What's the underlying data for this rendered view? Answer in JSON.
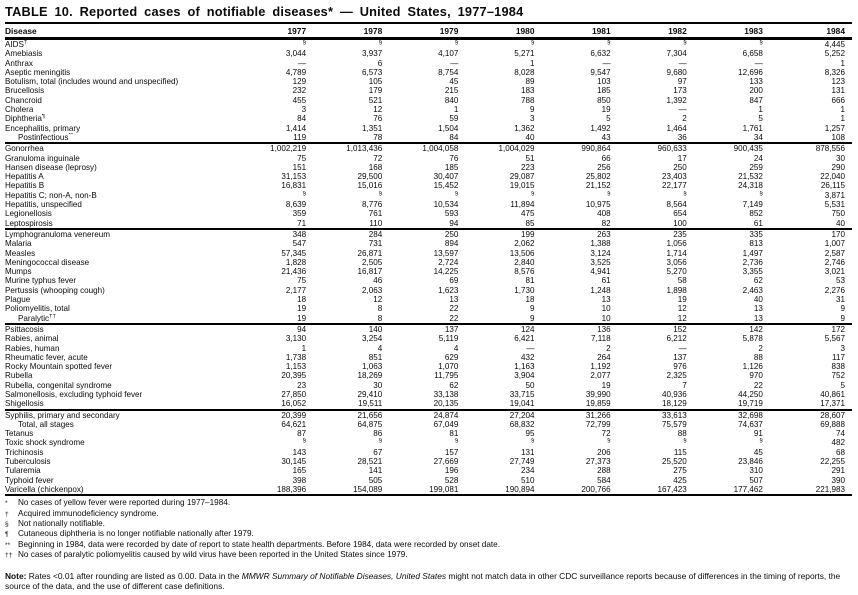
{
  "page": {
    "title": "TABLE 10. Reported cases of notifiable diseases* — United States, 1977–1984"
  },
  "table": {
    "columns": [
      "Disease",
      "1977",
      "1978",
      "1979",
      "1980",
      "1981",
      "1982",
      "1983",
      "1984"
    ],
    "groups": [
      {
        "rows": [
          {
            "label": "AIDS",
            "sup": "†",
            "indent": false,
            "values": [
              "§",
              "§",
              "§",
              "§",
              "§",
              "§",
              "§",
              "4,445"
            ]
          },
          {
            "label": "Amebiasis",
            "sup": "",
            "indent": false,
            "values": [
              "3,044",
              "3,937",
              "4,107",
              "5,271",
              "6,632",
              "7,304",
              "6,658",
              "5,252"
            ]
          },
          {
            "label": "Anthrax",
            "sup": "",
            "indent": false,
            "values": [
              "—",
              "6",
              "—",
              "1",
              "—",
              "—",
              "—",
              "1"
            ]
          },
          {
            "label": "Aseptic meningitis",
            "sup": "",
            "indent": false,
            "values": [
              "4,789",
              "6,573",
              "8,754",
              "8,028",
              "9,547",
              "9,680",
              "12,696",
              "8,326"
            ]
          },
          {
            "label": "Botulism, total (includes wound and unspecified)",
            "sup": "",
            "indent": false,
            "values": [
              "129",
              "105",
              "45",
              "89",
              "103",
              "97",
              "133",
              "123"
            ]
          },
          {
            "label": "Brucellosis",
            "sup": "",
            "indent": false,
            "values": [
              "232",
              "179",
              "215",
              "183",
              "185",
              "173",
              "200",
              "131"
            ]
          },
          {
            "label": "Chancroid",
            "sup": "",
            "indent": false,
            "values": [
              "455",
              "521",
              "840",
              "788",
              "850",
              "1,392",
              "847",
              "666"
            ]
          },
          {
            "label": "Cholera",
            "sup": "",
            "indent": false,
            "values": [
              "3",
              "12",
              "1",
              "9",
              "19",
              "—",
              "1",
              "1"
            ]
          },
          {
            "label": "Diphtheria",
            "sup": "¶",
            "indent": false,
            "values": [
              "84",
              "76",
              "59",
              "3",
              "5",
              "2",
              "5",
              "1"
            ]
          },
          {
            "label": "Encephalitis, primary",
            "sup": "",
            "indent": false,
            "values": [
              "1,414",
              "1,351",
              "1,504",
              "1,362",
              "1,492",
              "1,464",
              "1,761",
              "1,257"
            ]
          },
          {
            "label": "Postinfectious",
            "sup": "**",
            "indent": true,
            "values": [
              "119",
              "78",
              "84",
              "40",
              "43",
              "36",
              "34",
              "108"
            ]
          }
        ]
      },
      {
        "rows": [
          {
            "label": "Gonorrhea",
            "sup": "",
            "indent": false,
            "values": [
              "1,002,219",
              "1,013,436",
              "1,004,058",
              "1,004,029",
              "990,864",
              "960,633",
              "900,435",
              "878,556"
            ]
          },
          {
            "label": "Granuloma inguinale",
            "sup": "",
            "indent": false,
            "values": [
              "75",
              "72",
              "76",
              "51",
              "66",
              "17",
              "24",
              "30"
            ]
          },
          {
            "label": "Hansen disease (leprosy)",
            "sup": "",
            "indent": false,
            "values": [
              "151",
              "168",
              "185",
              "223",
              "256",
              "250",
              "259",
              "290"
            ]
          },
          {
            "label": "Hepatitis A",
            "sup": "",
            "indent": false,
            "values": [
              "31,153",
              "29,500",
              "30,407",
              "29,087",
              "25,802",
              "23,403",
              "21,532",
              "22,040"
            ]
          },
          {
            "label": "Hepatitis B",
            "sup": "",
            "indent": false,
            "values": [
              "16,831",
              "15,016",
              "15,452",
              "19,015",
              "21,152",
              "22,177",
              "24,318",
              "26,115"
            ]
          },
          {
            "label": "Hepatitis C; non-A, non-B",
            "sup": "",
            "indent": false,
            "values": [
              "§",
              "§",
              "§",
              "§",
              "§",
              "§",
              "§",
              "3,871"
            ]
          },
          {
            "label": "Hepatitis, unspecified",
            "sup": "",
            "indent": false,
            "values": [
              "8,639",
              "8,776",
              "10,534",
              "11,894",
              "10,975",
              "8,564",
              "7,149",
              "5,531"
            ]
          },
          {
            "label": "Legionellosis",
            "sup": "",
            "indent": false,
            "values": [
              "359",
              "761",
              "593",
              "475",
              "408",
              "654",
              "852",
              "750"
            ]
          },
          {
            "label": "Leptospirosis",
            "sup": "",
            "indent": false,
            "values": [
              "71",
              "110",
              "94",
              "85",
              "82",
              "100",
              "61",
              "40"
            ]
          }
        ]
      },
      {
        "rows": [
          {
            "label": "Lymphogranuloma venereum",
            "sup": "",
            "indent": false,
            "values": [
              "348",
              "284",
              "250",
              "199",
              "263",
              "235",
              "335",
              "170"
            ]
          },
          {
            "label": "Malaria",
            "sup": "",
            "indent": false,
            "values": [
              "547",
              "731",
              "894",
              "2,062",
              "1,388",
              "1,056",
              "813",
              "1,007"
            ]
          },
          {
            "label": "Measles",
            "sup": "",
            "indent": false,
            "values": [
              "57,345",
              "26,871",
              "13,597",
              "13,506",
              "3,124",
              "1,714",
              "1,497",
              "2,587"
            ]
          },
          {
            "label": "Meningococcal disease",
            "sup": "",
            "indent": false,
            "values": [
              "1,828",
              "2,505",
              "2,724",
              "2,840",
              "3,525",
              "3,056",
              "2,736",
              "2,746"
            ]
          },
          {
            "label": "Mumps",
            "sup": "",
            "indent": false,
            "values": [
              "21,436",
              "16,817",
              "14,225",
              "8,576",
              "4,941",
              "5,270",
              "3,355",
              "3,021"
            ]
          },
          {
            "label": "Murine typhus fever",
            "sup": "",
            "indent": false,
            "values": [
              "75",
              "46",
              "69",
              "81",
              "61",
              "58",
              "62",
              "53"
            ]
          },
          {
            "label": "Pertussis (whooping cough)",
            "sup": "",
            "indent": false,
            "values": [
              "2,177",
              "2,063",
              "1,623",
              "1,730",
              "1,248",
              "1,898",
              "2,463",
              "2,276"
            ]
          },
          {
            "label": "Plague",
            "sup": "",
            "indent": false,
            "values": [
              "18",
              "12",
              "13",
              "18",
              "13",
              "19",
              "40",
              "31"
            ]
          },
          {
            "label": "Poliomyelitis, total",
            "sup": "",
            "indent": false,
            "values": [
              "19",
              "8",
              "22",
              "9",
              "10",
              "12",
              "13",
              "9"
            ]
          },
          {
            "label": "Paralytic",
            "sup": "††",
            "indent": true,
            "values": [
              "19",
              "8",
              "22",
              "9",
              "10",
              "12",
              "13",
              "9"
            ]
          }
        ]
      },
      {
        "rows": [
          {
            "label": "Psittacosis",
            "sup": "",
            "indent": false,
            "values": [
              "94",
              "140",
              "137",
              "124",
              "136",
              "152",
              "142",
              "172"
            ]
          },
          {
            "label": "Rabies, animal",
            "sup": "",
            "indent": false,
            "values": [
              "3,130",
              "3,254",
              "5,119",
              "6,421",
              "7,118",
              "6,212",
              "5,878",
              "5,567"
            ]
          },
          {
            "label": "Rabies, human",
            "sup": "",
            "indent": false,
            "values": [
              "1",
              "4",
              "4",
              "—",
              "2",
              "—",
              "2",
              "3"
            ]
          },
          {
            "label": "Rheumatic fever, acute",
            "sup": "",
            "indent": false,
            "values": [
              "1,738",
              "851",
              "629",
              "432",
              "264",
              "137",
              "88",
              "117"
            ]
          },
          {
            "label": "Rocky Mountain spotted fever",
            "sup": "",
            "indent": false,
            "values": [
              "1,153",
              "1,063",
              "1,070",
              "1,163",
              "1,192",
              "976",
              "1,126",
              "838"
            ]
          },
          {
            "label": "Rubella",
            "sup": "",
            "indent": false,
            "values": [
              "20,395",
              "18,269",
              "11,795",
              "3,904",
              "2,077",
              "2,325",
              "970",
              "752"
            ]
          },
          {
            "label": "Rubella, congenital syndrome",
            "sup": "",
            "indent": false,
            "values": [
              "23",
              "30",
              "62",
              "50",
              "19",
              "7",
              "22",
              "5"
            ]
          },
          {
            "label": "Salmonellosis, excluding typhoid fever",
            "sup": "",
            "indent": false,
            "values": [
              "27,850",
              "29,410",
              "33,138",
              "33,715",
              "39,990",
              "40,936",
              "44,250",
              "40,861"
            ]
          },
          {
            "label": "Shigellosis",
            "sup": "",
            "indent": false,
            "values": [
              "16,052",
              "19,511",
              "20,135",
              "19,041",
              "19,859",
              "18,129",
              "19,719",
              "17,371"
            ]
          }
        ]
      },
      {
        "rows": [
          {
            "label": "Syphilis, primary and secondary",
            "sup": "",
            "indent": false,
            "values": [
              "20,399",
              "21,656",
              "24,874",
              "27,204",
              "31,266",
              "33,613",
              "32,698",
              "28,607"
            ]
          },
          {
            "label": "Total, all stages",
            "sup": "",
            "indent": true,
            "values": [
              "64,621",
              "64,875",
              "67,049",
              "68,832",
              "72,799",
              "75,579",
              "74,637",
              "69,888"
            ]
          },
          {
            "label": "Tetanus",
            "sup": "",
            "indent": false,
            "values": [
              "87",
              "86",
              "81",
              "95",
              "72",
              "88",
              "91",
              "74"
            ]
          },
          {
            "label": "Toxic shock syndrome",
            "sup": "",
            "indent": false,
            "values": [
              "§",
              "§",
              "§",
              "§",
              "§",
              "§",
              "§",
              "482"
            ]
          },
          {
            "label": "Trichinosis",
            "sup": "",
            "indent": false,
            "values": [
              "143",
              "67",
              "157",
              "131",
              "206",
              "115",
              "45",
              "68"
            ]
          },
          {
            "label": "Tuberculosis",
            "sup": "",
            "indent": false,
            "values": [
              "30,145",
              "28,521",
              "27,669",
              "27,749",
              "27,373",
              "25,520",
              "23,846",
              "22,255"
            ]
          },
          {
            "label": "Tularemia",
            "sup": "",
            "indent": false,
            "values": [
              "165",
              "141",
              "196",
              "234",
              "288",
              "275",
              "310",
              "291"
            ]
          },
          {
            "label": "Typhoid fever",
            "sup": "",
            "indent": false,
            "values": [
              "398",
              "505",
              "528",
              "510",
              "584",
              "425",
              "507",
              "390"
            ]
          },
          {
            "label": "Varicella (chickenpox)",
            "sup": "",
            "indent": false,
            "values": [
              "188,396",
              "154,089",
              "199,081",
              "190,894",
              "200,766",
              "167,423",
              "177,462",
              "221,983"
            ]
          }
        ]
      }
    ]
  },
  "footnotes": [
    {
      "marker": "*",
      "text": "No cases of yellow fever were reported during 1977–1984."
    },
    {
      "marker": "†",
      "text": "Acquired immunodeficiency syndrome."
    },
    {
      "marker": "§",
      "text": "Not nationally notifiable."
    },
    {
      "marker": "¶",
      "text": "Cutaneous diphtheria is no longer notifiable nationally after 1979."
    },
    {
      "marker": "**",
      "text": "Beginning in 1984, data were recorded by date of report to state health departments. Before 1984, data were recorded by onset date."
    },
    {
      "marker": "††",
      "text": "No cases of paralytic poliomyelitis caused by wild virus have been reported in the United States since 1979."
    }
  ],
  "note": {
    "label": "Note:",
    "before": " Rates <0.01 after rounding are listed as 0.00. Data in the ",
    "italic": "MMWR Summary of Notifiable Diseases, United States",
    "after": " might not match data in other CDC surveillance reports because of differences in the timing of reports, the source of the data, and the use of different case definitions."
  }
}
